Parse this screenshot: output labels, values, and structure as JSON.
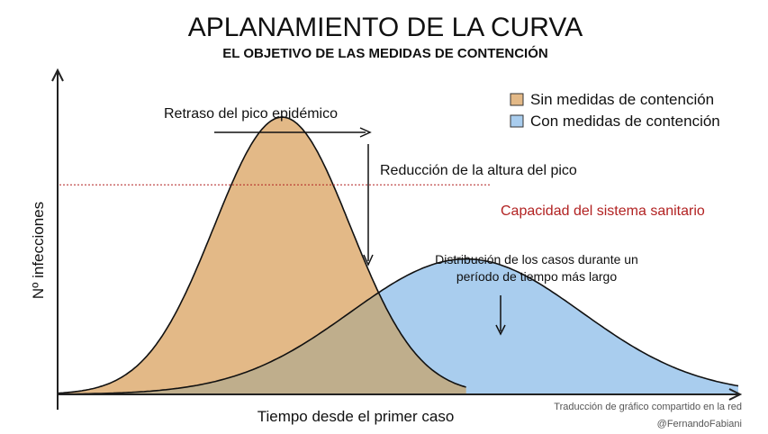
{
  "chart_data": {
    "type": "area",
    "title": "APLANAMIENTO DE LA CURVA",
    "subtitle": "EL OBJETIVO DE LAS MEDIDAS DE CONTENCIÓN",
    "xlabel": "Tiempo desde el primer caso",
    "ylabel": "Nº infecciones",
    "grid": false,
    "legend": {
      "placement": "top-right",
      "entries": [
        {
          "label": "Sin medidas de contención",
          "color": "#e3b987"
        },
        {
          "label": "Con medidas de contención",
          "color": "#a9cdee"
        }
      ]
    },
    "series": [
      {
        "name": "Sin medidas de contención",
        "peak_x": 0.33,
        "peak_y": 0.86,
        "width": 0.1,
        "end_x": 0.6,
        "color": "#e3b987"
      },
      {
        "name": "Con medidas de contención",
        "peak_x": 0.6,
        "peak_y": 0.42,
        "width": 0.17,
        "end_x": 1.0,
        "color": "#a9cdee"
      }
    ],
    "overlap_color": "#bfae8c",
    "capacity": {
      "label": "Capacidad del sistema sanitario",
      "y": 0.65,
      "color": "#b22222"
    },
    "annotations": {
      "delay": "Retraso del pico epidémico",
      "reduction": "Reducción de la altura del pico",
      "distribution_line1": "Distribución de los casos durante un",
      "distribution_line2": "período de tiempo más largo"
    },
    "credits": {
      "line1": "Traducción de gráfico compartido en la red",
      "line2": "@FernandoFabiani"
    }
  }
}
